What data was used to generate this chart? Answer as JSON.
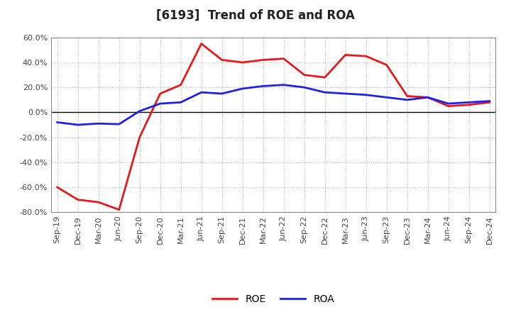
{
  "title": "[6193]  Trend of ROE and ROA",
  "x_labels": [
    "Sep-19",
    "Dec-19",
    "Mar-20",
    "Jun-20",
    "Sep-20",
    "Dec-20",
    "Mar-21",
    "Jun-21",
    "Sep-21",
    "Dec-21",
    "Mar-22",
    "Jun-22",
    "Sep-22",
    "Dec-22",
    "Mar-23",
    "Jun-23",
    "Sep-23",
    "Dec-23",
    "Mar-24",
    "Jun-24",
    "Sep-24",
    "Dec-24"
  ],
  "roe": [
    -60.0,
    -70.0,
    -72.0,
    -78.0,
    -20.0,
    15.0,
    22.0,
    55.0,
    42.0,
    40.0,
    42.0,
    43.0,
    30.0,
    28.0,
    46.0,
    45.0,
    38.0,
    13.0,
    12.0,
    5.0,
    6.0,
    8.0
  ],
  "roa": [
    -8.0,
    -10.0,
    -9.0,
    -9.5,
    1.0,
    7.0,
    8.0,
    16.0,
    15.0,
    19.0,
    21.0,
    22.0,
    20.0,
    16.0,
    15.0,
    14.0,
    12.0,
    10.0,
    12.0,
    7.0,
    8.0,
    9.0
  ],
  "roe_color": "#e8191a",
  "roa_color": "#2020e8",
  "background_color": "#ffffff",
  "grid_color": "#c0c0c0",
  "ylim": [
    -80.0,
    60.0
  ],
  "yticks": [
    -80.0,
    -60.0,
    -40.0,
    -20.0,
    0.0,
    20.0,
    40.0,
    60.0
  ],
  "title_fontsize": 12,
  "axis_fontsize": 8,
  "legend_fontsize": 10,
  "line_width": 2.0
}
